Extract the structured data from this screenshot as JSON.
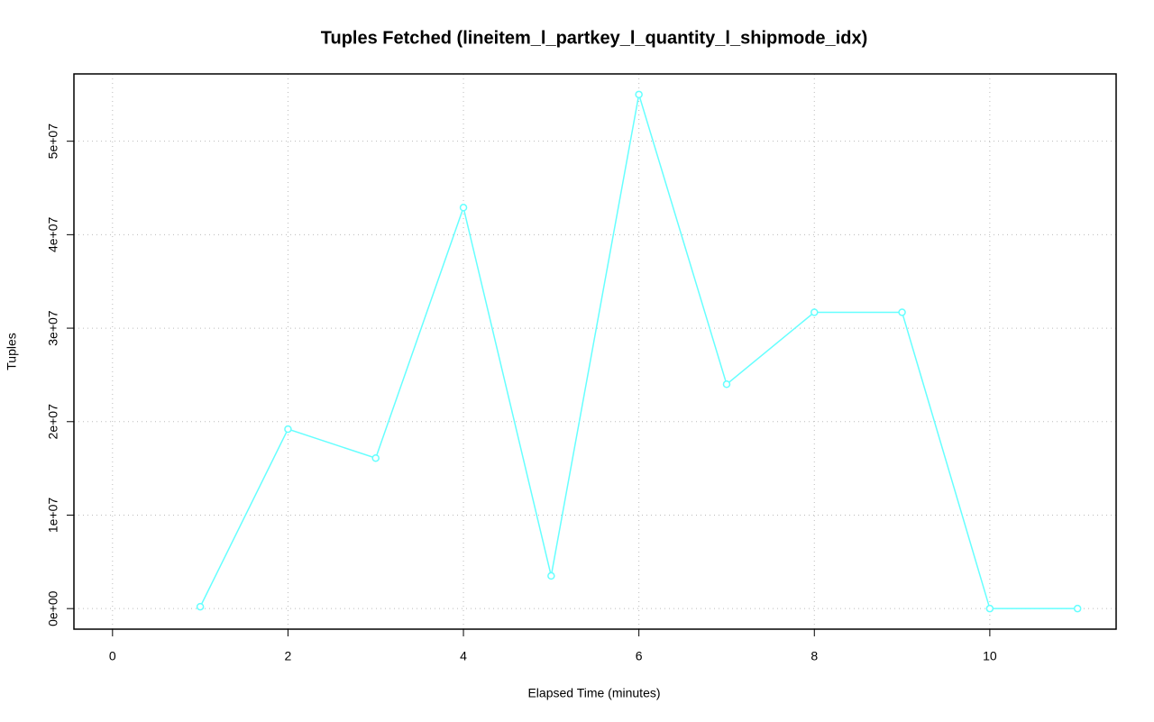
{
  "chart_data": {
    "type": "line",
    "title": "Tuples Fetched (lineitem_l_partkey_l_quantity_l_shipmode_idx)",
    "x_label": "Elapsed Time (minutes)",
    "y_label": "Tuples",
    "x": [
      1,
      2,
      3,
      4,
      5,
      6,
      7,
      8,
      9,
      10,
      11
    ],
    "series": [
      {
        "name": "Tuples",
        "color": "#66ffff",
        "values": [
          200000,
          19200000,
          16100000,
          42900000,
          3500000,
          55000000,
          24000000,
          31700000,
          31700000,
          0,
          0
        ]
      }
    ],
    "xlim": [
      -0.44,
      11.44
    ],
    "xticks": [
      0,
      2,
      4,
      6,
      8,
      10
    ],
    "ylim": [
      -2200000,
      57200000
    ],
    "yticks": [
      {
        "value": 0,
        "label": "0e+00"
      },
      {
        "value": 10000000,
        "label": "1e+07"
      },
      {
        "value": 20000000,
        "label": "2e+07"
      },
      {
        "value": 30000000,
        "label": "3e+07"
      },
      {
        "value": 40000000,
        "label": "4e+07"
      },
      {
        "value": 50000000,
        "label": "5e+07"
      }
    ],
    "grid": true
  }
}
